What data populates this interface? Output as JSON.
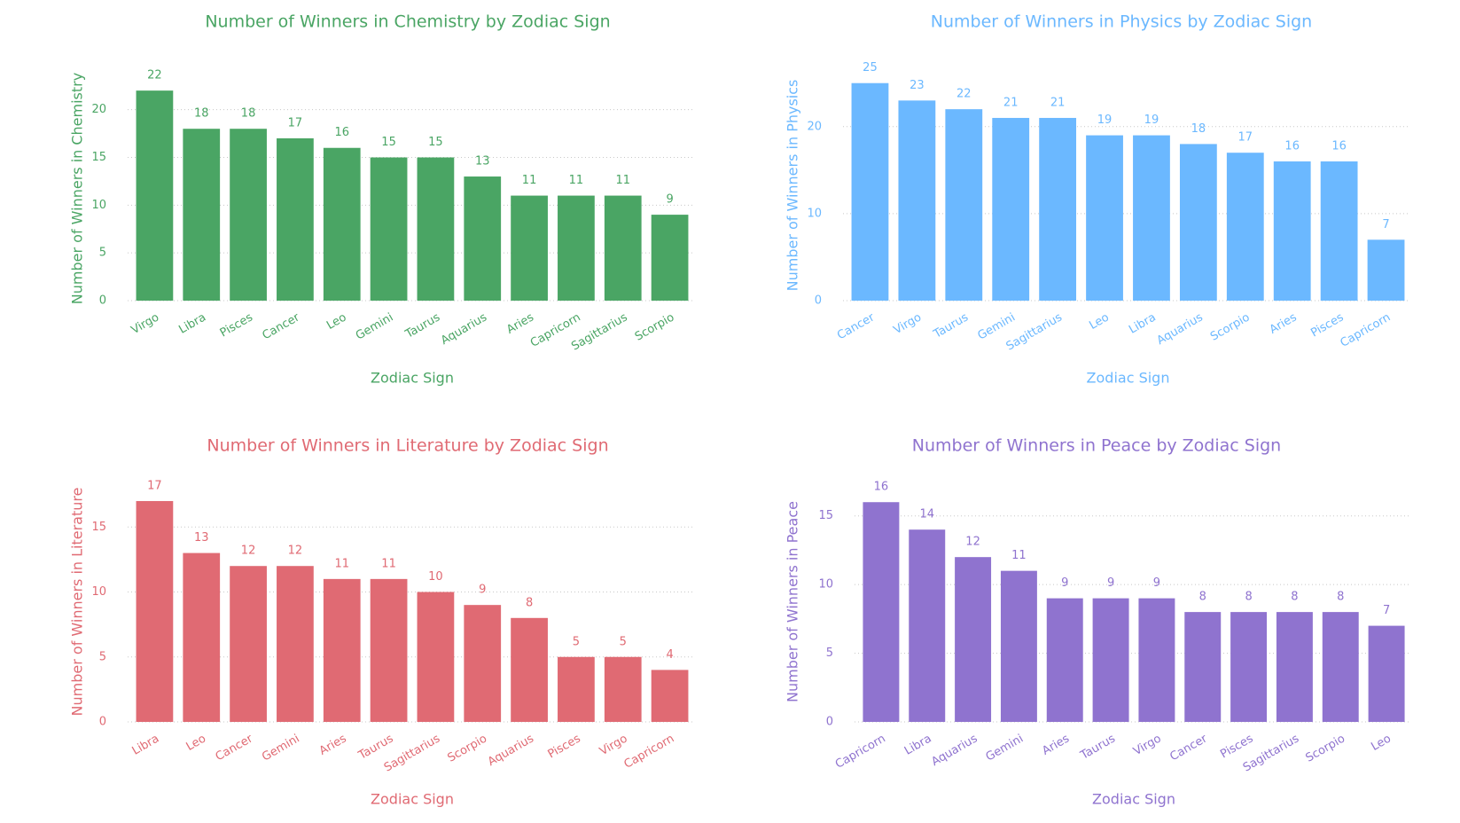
{
  "chart_data": [
    {
      "type": "bar",
      "title": "Number of Winners in Chemistry by Zodiac Sign",
      "xlabel": "Zodiac Sign",
      "ylabel": "Number of Winners in Chemistry",
      "color": "#4aa564",
      "categories": [
        "Virgo",
        "Libra",
        "Pisces",
        "Cancer",
        "Leo",
        "Gemini",
        "Taurus",
        "Aquarius",
        "Aries",
        "Capricorn",
        "Sagittarius",
        "Scorpio"
      ],
      "values": [
        22,
        18,
        18,
        17,
        16,
        15,
        15,
        13,
        11,
        11,
        11,
        9
      ],
      "yticks": [
        0,
        5,
        10,
        15,
        20
      ],
      "ylim": [
        0,
        23.5
      ],
      "grid": true
    },
    {
      "type": "bar",
      "title": "Number of Winners in Physics by Zodiac Sign",
      "xlabel": "Zodiac Sign",
      "ylabel": "Number of Winners in Physics",
      "color": "#6bb8ff",
      "categories": [
        "Cancer",
        "Virgo",
        "Taurus",
        "Gemini",
        "Sagittarius",
        "Leo",
        "Libra",
        "Aquarius",
        "Scorpio",
        "Aries",
        "Pisces",
        "Capricorn"
      ],
      "values": [
        25,
        23,
        22,
        21,
        21,
        19,
        19,
        18,
        17,
        16,
        16,
        7
      ],
      "yticks": [
        0,
        10,
        20
      ],
      "ylim": [
        0,
        26.5
      ],
      "grid": true
    },
    {
      "type": "bar",
      "title": "Number of Winners in Literature by Zodiac Sign",
      "xlabel": "Zodiac Sign",
      "ylabel": "Number of Winners in Literature",
      "color": "#e06a73",
      "categories": [
        "Libra",
        "Leo",
        "Cancer",
        "Gemini",
        "Aries",
        "Taurus",
        "Sagittarius",
        "Scorpio",
        "Aquarius",
        "Pisces",
        "Virgo",
        "Capricorn"
      ],
      "values": [
        17,
        13,
        12,
        12,
        11,
        11,
        10,
        9,
        8,
        5,
        5,
        4
      ],
      "yticks": [
        0,
        5,
        10,
        15
      ],
      "ylim": [
        0,
        18.5
      ],
      "grid": true
    },
    {
      "type": "bar",
      "title": "Number of Winners in Peace by Zodiac Sign",
      "xlabel": "Zodiac Sign",
      "ylabel": "Number of Winners in Peace",
      "color": "#8f73cf",
      "categories": [
        "Capricorn",
        "Libra",
        "Aquarius",
        "Gemini",
        "Aries",
        "Taurus",
        "Virgo",
        "Cancer",
        "Pisces",
        "Sagittarius",
        "Scorpio",
        "Leo"
      ],
      "values": [
        16,
        14,
        12,
        11,
        9,
        9,
        9,
        8,
        8,
        8,
        8,
        7
      ],
      "yticks": [
        0,
        5,
        10,
        15
      ],
      "ylim": [
        0,
        17.5
      ],
      "grid": true
    }
  ]
}
